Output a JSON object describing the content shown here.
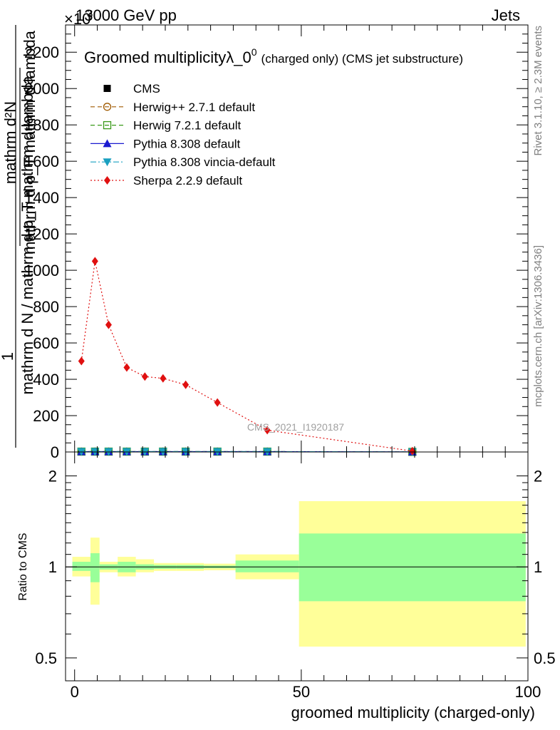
{
  "header": {
    "energy": "13000 GeV pp",
    "process": "Jets",
    "scale_exponent_label": "×10",
    "scale_exponent": "3",
    "side_label_top": "Rivet 3.1.10, ≥ 2.3M events",
    "side_label_bottom": "mcplots.cern.ch [arXiv:1306.3436]",
    "watermark": "CMS_2021_I1920187"
  },
  "chart_data": [
    {
      "type": "line",
      "title_main": "Groomed multiplicityλ_0",
      "title_sup": "0",
      "title_suffix": "(charged only) (CMS jet substructure)",
      "ylabel_numerator": "1",
      "ylabel_denominator_top": "mathrm d N",
      "ylabel_denominator": "mathrm d N / mathrm d p_T mathrm d lambda",
      "ylabel_sub_top": "mathrm d²N",
      "ylabel_sub_bottom": "mathrm d p_T mathrm d lambda",
      "ylim": [
        0,
        2350
      ],
      "xlim": [
        -2,
        100
      ],
      "yticks": [
        0,
        200,
        400,
        600,
        800,
        1000,
        1200,
        1400,
        1600,
        1800,
        2000,
        2200
      ],
      "ytick_labels": [
        "0",
        "200",
        "400",
        "600",
        "800",
        "1000",
        "1200",
        "1400",
        "1600",
        "1800",
        "2000",
        "2200"
      ],
      "legend_position": "top-left",
      "series": [
        {
          "name": "CMS",
          "marker": "square",
          "color": "#000000",
          "style": "none",
          "x": [
            1.5,
            4.5,
            7.5,
            11.5,
            15.5,
            19.5,
            24.5,
            31.5,
            42.5,
            74.5
          ],
          "y": [
            2,
            2,
            2,
            2,
            2,
            2,
            2,
            2,
            2,
            0.5
          ]
        },
        {
          "name": "Herwig++ 2.7.1 default",
          "marker": "circle-open",
          "color": "#a05a00",
          "style": "dashed",
          "x": [
            1.5,
            4.5,
            7.5,
            11.5,
            15.5,
            19.5,
            24.5,
            31.5,
            42.5,
            74.5
          ],
          "y": [
            2,
            2,
            2,
            2,
            2,
            2,
            2,
            2,
            2,
            0.5
          ]
        },
        {
          "name": "Herwig 7.2.1 default",
          "marker": "square-open",
          "color": "#3a9a1a",
          "style": "dashed",
          "x": [
            1.5,
            4.5,
            7.5,
            11.5,
            15.5,
            19.5,
            24.5,
            31.5,
            42.5,
            74.5
          ],
          "y": [
            2,
            2,
            2,
            2,
            2,
            2,
            2,
            2,
            2,
            0.5
          ]
        },
        {
          "name": "Pythia 8.308 default",
          "marker": "triangle-up",
          "color": "#1a1ad0",
          "style": "solid",
          "x": [
            1.5,
            4.5,
            7.5,
            11.5,
            15.5,
            19.5,
            24.5,
            31.5,
            42.5,
            74.5
          ],
          "y": [
            2,
            2,
            2,
            2,
            2,
            2,
            2,
            2,
            2,
            0.5
          ]
        },
        {
          "name": "Pythia 8.308 vincia-default",
          "marker": "triangle-down",
          "color": "#1aa0c0",
          "style": "dashdot",
          "x": [
            1.5,
            4.5,
            7.5,
            11.5,
            15.5,
            19.5,
            24.5,
            31.5,
            42.5,
            74.5
          ],
          "y": [
            2,
            2,
            2,
            2,
            2,
            2,
            2,
            2,
            2,
            0.5
          ]
        },
        {
          "name": "Sherpa 2.2.9 default",
          "marker": "diamond",
          "color": "#e01010",
          "style": "dotted",
          "x": [
            1.5,
            4.5,
            7.5,
            11.5,
            15.5,
            19.5,
            24.5,
            31.5,
            42.5,
            74.5
          ],
          "y": [
            500,
            1050,
            700,
            465,
            415,
            405,
            370,
            272,
            120,
            5
          ]
        }
      ]
    },
    {
      "type": "area",
      "ylabel": "Ratio to CMS",
      "xlabel": "groomed multiplicity (charged-only)",
      "xlim": [
        -2,
        100
      ],
      "ylim": [
        0.42,
        2.4
      ],
      "log_scale_y": true,
      "xticks": [
        0,
        50,
        100
      ],
      "xtick_labels": [
        "0",
        "50",
        "100"
      ],
      "yticks": [
        0.5,
        1,
        2
      ],
      "ytick_labels": [
        "0.5",
        "1",
        "2"
      ],
      "reference_line": 1,
      "bins": [
        {
          "x_lo": -0.5,
          "x_hi": 3.5,
          "green_lo": 0.97,
          "green_hi": 1.04,
          "yellow_lo": 0.93,
          "yellow_hi": 1.08
        },
        {
          "x_lo": 3.5,
          "x_hi": 5.5,
          "green_lo": 0.89,
          "green_hi": 1.11,
          "yellow_lo": 0.75,
          "yellow_hi": 1.25
        },
        {
          "x_lo": 5.5,
          "x_hi": 9.5,
          "green_lo": 0.98,
          "green_hi": 1.02,
          "yellow_lo": 0.96,
          "yellow_hi": 1.04
        },
        {
          "x_lo": 9.5,
          "x_hi": 13.5,
          "green_lo": 0.96,
          "green_hi": 1.04,
          "yellow_lo": 0.93,
          "yellow_hi": 1.08
        },
        {
          "x_lo": 13.5,
          "x_hi": 17.5,
          "green_lo": 0.98,
          "green_hi": 1.02,
          "yellow_lo": 0.96,
          "yellow_hi": 1.06
        },
        {
          "x_lo": 17.5,
          "x_hi": 22.5,
          "green_lo": 0.985,
          "green_hi": 1.015,
          "yellow_lo": 0.97,
          "yellow_hi": 1.03
        },
        {
          "x_lo": 22.5,
          "x_hi": 28.5,
          "green_lo": 0.985,
          "green_hi": 1.015,
          "yellow_lo": 0.97,
          "yellow_hi": 1.03
        },
        {
          "x_lo": 28.5,
          "x_hi": 35.5,
          "green_lo": 0.99,
          "green_hi": 1.01,
          "yellow_lo": 0.975,
          "yellow_hi": 1.025
        },
        {
          "x_lo": 35.5,
          "x_hi": 49.5,
          "green_lo": 0.96,
          "green_hi": 1.05,
          "yellow_lo": 0.91,
          "yellow_hi": 1.1
        },
        {
          "x_lo": 49.5,
          "x_hi": 99.5,
          "green_lo": 0.77,
          "green_hi": 1.29,
          "yellow_lo": 0.545,
          "yellow_hi": 1.65
        }
      ],
      "colors": {
        "green": "#99ff99",
        "yellow": "#ffff99"
      }
    }
  ]
}
